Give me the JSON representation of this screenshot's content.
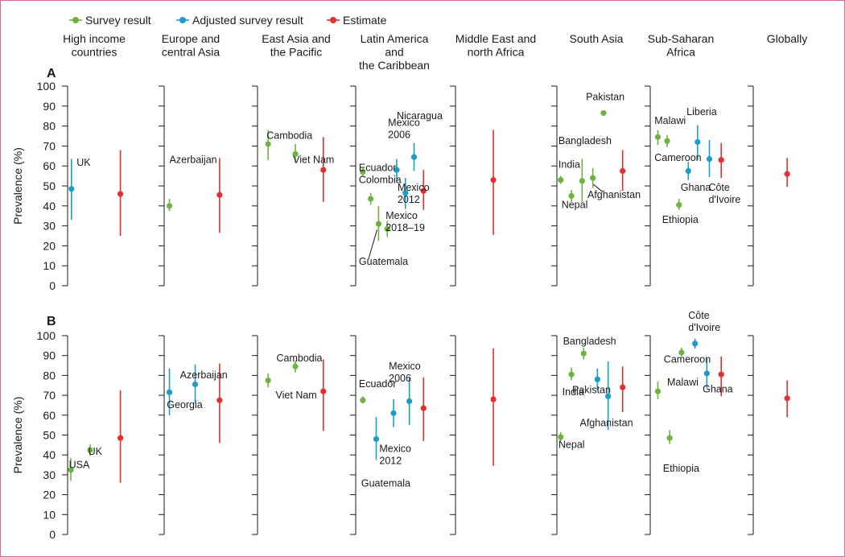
{
  "legend": [
    {
      "key": "survey",
      "label": "Survey result",
      "color": "#6db33f"
    },
    {
      "key": "adjusted",
      "label": "Adjusted survey result",
      "color": "#1c9cc9"
    },
    {
      "key": "estimate",
      "label": "Estimate",
      "color": "#e32f2f"
    }
  ],
  "frame_color": "#d9679b",
  "regions": [
    {
      "lines": [
        "High income",
        "countries"
      ]
    },
    {
      "lines": [
        "Europe and",
        "central Asia"
      ]
    },
    {
      "lines": [
        "East Asia and",
        "the Pacific"
      ]
    },
    {
      "lines": [
        "Latin America",
        "and",
        "the Caribbean"
      ]
    },
    {
      "lines": [
        "Middle East and",
        "north Africa"
      ]
    },
    {
      "lines": [
        "South Asia"
      ]
    },
    {
      "lines": [
        "Sub-Saharan",
        "Africa"
      ]
    },
    {
      "lines": [
        "Globally"
      ]
    }
  ],
  "chart_data": [
    {
      "type": "scatter",
      "panel": "A",
      "ylabel": "Prevalence (%)",
      "ylim": [
        0,
        100
      ],
      "yticks": [
        0,
        10,
        20,
        30,
        40,
        50,
        60,
        70,
        80,
        90,
        100
      ],
      "points": [
        {
          "region": 0,
          "pos": 0.06,
          "kind": "adjusted",
          "value": 48.5,
          "low": 33,
          "high": 63.5
        },
        {
          "region": 0,
          "pos": 0.82,
          "kind": "estimate",
          "value": 46,
          "low": 25,
          "high": 68
        },
        {
          "region": 1,
          "pos": 0.08,
          "kind": "survey",
          "value": 40,
          "low": 37.5,
          "high": 43.5
        },
        {
          "region": 1,
          "pos": 0.84,
          "kind": "estimate",
          "value": 45.5,
          "low": 26.5,
          "high": 64
        },
        {
          "region": 2,
          "pos": 0.14,
          "kind": "survey",
          "value": 71,
          "low": 63,
          "high": 78
        },
        {
          "region": 2,
          "pos": 0.5,
          "kind": "survey",
          "value": 66,
          "low": 61.5,
          "high": 71
        },
        {
          "region": 2,
          "pos": 0.87,
          "kind": "estimate",
          "value": 58,
          "low": 42,
          "high": 74.5
        },
        {
          "region": 3,
          "pos": 0.09,
          "kind": "survey",
          "value": 57,
          "low": 55,
          "high": 59
        },
        {
          "region": 3,
          "pos": 0.19,
          "kind": "survey",
          "value": 43.5,
          "low": 40.5,
          "high": 46.5
        },
        {
          "region": 3,
          "pos": 0.29,
          "kind": "survey",
          "value": 31,
          "low": 22.5,
          "high": 40
        },
        {
          "region": 3,
          "pos": 0.4,
          "kind": "survey",
          "value": 28.5,
          "low": 24.5,
          "high": 32.5
        },
        {
          "region": 3,
          "pos": 0.52,
          "kind": "adjusted",
          "value": 58,
          "low": 52.5,
          "high": 63.5
        },
        {
          "region": 3,
          "pos": 0.63,
          "kind": "adjusted",
          "value": 46.5,
          "low": 38.5,
          "high": 54
        },
        {
          "region": 3,
          "pos": 0.74,
          "kind": "adjusted",
          "value": 64.5,
          "low": 57.5,
          "high": 71.5
        },
        {
          "region": 3,
          "pos": 0.86,
          "kind": "estimate",
          "value": 47.5,
          "low": 38,
          "high": 58
        },
        {
          "region": 4,
          "pos": 0.48,
          "kind": "estimate",
          "value": 53,
          "low": 25.5,
          "high": 78
        },
        {
          "region": 5,
          "pos": 0.05,
          "kind": "survey",
          "value": 53,
          "low": 51,
          "high": 55
        },
        {
          "region": 5,
          "pos": 0.19,
          "kind": "survey",
          "value": 45,
          "low": 42,
          "high": 48
        },
        {
          "region": 5,
          "pos": 0.33,
          "kind": "survey",
          "value": 52.5,
          "low": 42,
          "high": 63.5
        },
        {
          "region": 5,
          "pos": 0.47,
          "kind": "survey",
          "value": 54,
          "low": 49,
          "high": 59
        },
        {
          "region": 5,
          "pos": 0.61,
          "kind": "survey",
          "value": 86.5,
          "low": 85.5,
          "high": 87.5
        },
        {
          "region": 5,
          "pos": 0.86,
          "kind": "estimate",
          "value": 57.5,
          "low": 47.5,
          "high": 68
        },
        {
          "region": 6,
          "pos": 0.09,
          "kind": "survey",
          "value": 74.5,
          "low": 70.5,
          "high": 78
        },
        {
          "region": 6,
          "pos": 0.2,
          "kind": "survey",
          "value": 72.5,
          "low": 69.5,
          "high": 75.5
        },
        {
          "region": 6,
          "pos": 0.34,
          "kind": "survey",
          "value": 40.5,
          "low": 38,
          "high": 43.5
        },
        {
          "region": 6,
          "pos": 0.45,
          "kind": "adjusted",
          "value": 57.5,
          "low": 53,
          "high": 62
        },
        {
          "region": 6,
          "pos": 0.56,
          "kind": "adjusted",
          "value": 72,
          "low": 63,
          "high": 80.5
        },
        {
          "region": 6,
          "pos": 0.7,
          "kind": "adjusted",
          "value": 63.5,
          "low": 54.5,
          "high": 73
        },
        {
          "region": 6,
          "pos": 0.84,
          "kind": "estimate",
          "value": 63,
          "low": 54,
          "high": 71.5
        },
        {
          "region": 7,
          "pos": 0.43,
          "kind": "estimate",
          "value": 56,
          "low": 49.5,
          "high": 64
        }
      ],
      "labels": [
        {
          "region": 0,
          "pos": 0.14,
          "value": 60,
          "lines": [
            "UK"
          ]
        },
        {
          "region": 1,
          "pos": 0.08,
          "value": 61.5,
          "lines": [
            "Azerbaijan"
          ]
        },
        {
          "region": 2,
          "pos": 0.12,
          "value": 73.5,
          "lines": [
            "Cambodia"
          ]
        },
        {
          "region": 2,
          "pos": 0.47,
          "value": 61.5,
          "lines": [
            "Viet Nam"
          ]
        },
        {
          "region": 3,
          "pos": 0.04,
          "value": 51.5,
          "lines": [
            "Colombia"
          ]
        },
        {
          "region": 3,
          "pos": 0.04,
          "value": 57.5,
          "lines": [
            "Ecuador"
          ]
        },
        {
          "region": 3,
          "pos": 0.41,
          "value": 80,
          "lines": [
            "Mexico",
            "2006"
          ]
        },
        {
          "region": 3,
          "pos": 0.52,
          "value": 83.5,
          "lines": [
            "Nicaragua"
          ]
        },
        {
          "region": 3,
          "pos": 0.53,
          "value": 47.5,
          "lines": [
            "Mexico",
            "2012"
          ]
        },
        {
          "region": 3,
          "pos": 0.38,
          "value": 33.5,
          "lines": [
            "Mexico",
            "2018–19"
          ]
        },
        {
          "region": 3,
          "pos": 0.04,
          "value": 10.5,
          "lines": [
            "Guatemala"
          ]
        },
        {
          "region": 5,
          "pos": 0.38,
          "value": 93,
          "lines": [
            "Pakistan"
          ]
        },
        {
          "region": 5,
          "pos": 0.02,
          "value": 71,
          "lines": [
            "Bangladesh"
          ]
        },
        {
          "region": 5,
          "pos": 0.02,
          "value": 59,
          "lines": [
            "India"
          ]
        },
        {
          "region": 5,
          "pos": 0.06,
          "value": 39,
          "lines": [
            "Nepal"
          ]
        },
        {
          "region": 5,
          "pos": 0.4,
          "value": 44,
          "lines": [
            "Afghanistan"
          ]
        },
        {
          "region": 6,
          "pos": 0.05,
          "value": 81,
          "lines": [
            "Malawi"
          ]
        },
        {
          "region": 6,
          "pos": 0.43,
          "value": 85.5,
          "lines": [
            "Liberia"
          ]
        },
        {
          "region": 6,
          "pos": 0.05,
          "value": 62.5,
          "lines": [
            "Cameroon"
          ]
        },
        {
          "region": 6,
          "pos": 0.36,
          "value": 47.5,
          "lines": [
            "Ghana"
          ]
        },
        {
          "region": 6,
          "pos": 0.69,
          "value": 47.5,
          "lines": [
            "Côte",
            "d'Ivoire"
          ]
        },
        {
          "region": 6,
          "pos": 0.14,
          "value": 31.5,
          "lines": [
            "Ethiopia"
          ]
        }
      ],
      "leaders": [
        {
          "region": 3,
          "pos1": 0.16,
          "value1": 13,
          "pos2": 0.27,
          "value2": 28
        },
        {
          "region": 5,
          "pos1": 0.47,
          "value1": 51,
          "pos2": 0.6,
          "value2": 47
        }
      ]
    },
    {
      "type": "scatter",
      "panel": "B",
      "ylabel": "Prevalence (%)",
      "ylim": [
        0,
        100
      ],
      "yticks": [
        0,
        10,
        20,
        30,
        40,
        50,
        60,
        70,
        80,
        90,
        100
      ],
      "points": [
        {
          "region": 0,
          "pos": 0.05,
          "kind": "survey",
          "value": 32.5,
          "low": 27,
          "high": 38.5
        },
        {
          "region": 0,
          "pos": 0.35,
          "kind": "survey",
          "value": 42.5,
          "low": 39.5,
          "high": 45.5
        },
        {
          "region": 0,
          "pos": 0.82,
          "kind": "estimate",
          "value": 48.5,
          "low": 26,
          "high": 72.5
        },
        {
          "region": 1,
          "pos": 0.08,
          "kind": "adjusted",
          "value": 71.5,
          "low": 60,
          "high": 83.5
        },
        {
          "region": 1,
          "pos": 0.47,
          "kind": "adjusted",
          "value": 75.5,
          "low": 66,
          "high": 85.5
        },
        {
          "region": 1,
          "pos": 0.84,
          "kind": "estimate",
          "value": 67.5,
          "low": 46,
          "high": 86
        },
        {
          "region": 2,
          "pos": 0.14,
          "kind": "survey",
          "value": 77.5,
          "low": 74,
          "high": 81
        },
        {
          "region": 2,
          "pos": 0.5,
          "kind": "survey",
          "value": 84.5,
          "low": 81.5,
          "high": 87.5
        },
        {
          "region": 2,
          "pos": 0.87,
          "kind": "estimate",
          "value": 72,
          "low": 52,
          "high": 88
        },
        {
          "region": 3,
          "pos": 0.09,
          "kind": "survey",
          "value": 67.5,
          "low": 66,
          "high": 69.5
        },
        {
          "region": 3,
          "pos": 0.26,
          "kind": "adjusted",
          "value": 48,
          "low": 37.5,
          "high": 59
        },
        {
          "region": 3,
          "pos": 0.48,
          "kind": "adjusted",
          "value": 61,
          "low": 54,
          "high": 68
        },
        {
          "region": 3,
          "pos": 0.68,
          "kind": "adjusted",
          "value": 67,
          "low": 55,
          "high": 79
        },
        {
          "region": 3,
          "pos": 0.86,
          "kind": "estimate",
          "value": 63.5,
          "low": 47,
          "high": 79
        },
        {
          "region": 4,
          "pos": 0.48,
          "kind": "estimate",
          "value": 68,
          "low": 34.5,
          "high": 93.5
        },
        {
          "region": 5,
          "pos": 0.05,
          "kind": "survey",
          "value": 49,
          "low": 47,
          "high": 51.5
        },
        {
          "region": 5,
          "pos": 0.19,
          "kind": "survey",
          "value": 80.5,
          "low": 77.5,
          "high": 84
        },
        {
          "region": 5,
          "pos": 0.35,
          "kind": "survey",
          "value": 91,
          "low": 88,
          "high": 94
        },
        {
          "region": 5,
          "pos": 0.53,
          "kind": "adjusted",
          "value": 78,
          "low": 72.5,
          "high": 83.5
        },
        {
          "region": 5,
          "pos": 0.67,
          "kind": "adjusted",
          "value": 69.5,
          "low": 52.5,
          "high": 87
        },
        {
          "region": 5,
          "pos": 0.86,
          "kind": "estimate",
          "value": 74,
          "low": 61.5,
          "high": 84.5
        },
        {
          "region": 6,
          "pos": 0.09,
          "kind": "survey",
          "value": 72,
          "low": 68,
          "high": 77
        },
        {
          "region": 6,
          "pos": 0.23,
          "kind": "survey",
          "value": 48.5,
          "low": 45.5,
          "high": 52.5
        },
        {
          "region": 6,
          "pos": 0.37,
          "kind": "survey",
          "value": 91.5,
          "low": 89.5,
          "high": 94
        },
        {
          "region": 6,
          "pos": 0.53,
          "kind": "adjusted",
          "value": 96,
          "low": 93.5,
          "high": 98.5
        },
        {
          "region": 6,
          "pos": 0.67,
          "kind": "adjusted",
          "value": 81,
          "low": 73.5,
          "high": 88.5
        },
        {
          "region": 6,
          "pos": 0.84,
          "kind": "estimate",
          "value": 80.5,
          "low": 69.5,
          "high": 89.5
        },
        {
          "region": 7,
          "pos": 0.43,
          "kind": "estimate",
          "value": 68.5,
          "low": 59,
          "high": 77.5
        }
      ],
      "labels": [
        {
          "region": 0,
          "pos": 0.02,
          "value": 33.5,
          "lines": [
            "USA"
          ]
        },
        {
          "region": 0,
          "pos": 0.32,
          "value": 40,
          "lines": [
            "UK"
          ]
        },
        {
          "region": 1,
          "pos": 0.24,
          "value": 78.5,
          "lines": [
            "Azerbaijan"
          ]
        },
        {
          "region": 1,
          "pos": 0.04,
          "value": 63.5,
          "lines": [
            "Georgia"
          ]
        },
        {
          "region": 2,
          "pos": 0.24,
          "value": 68.5,
          "lines": [
            "Viet Nam"
          ]
        },
        {
          "region": 2,
          "pos": 0.25,
          "value": 87,
          "lines": [
            "Cambodia"
          ]
        },
        {
          "region": 3,
          "pos": 0.04,
          "value": 74,
          "lines": [
            "Ecuador"
          ]
        },
        {
          "region": 3,
          "pos": 0.42,
          "value": 83,
          "lines": [
            "Mexico",
            "2006"
          ]
        },
        {
          "region": 3,
          "pos": 0.3,
          "value": 41.5,
          "lines": [
            "Mexico",
            "2012"
          ]
        },
        {
          "region": 3,
          "pos": 0.07,
          "value": 24,
          "lines": [
            "Guatemala"
          ]
        },
        {
          "region": 5,
          "pos": 0.07,
          "value": 70,
          "lines": [
            "India"
          ]
        },
        {
          "region": 5,
          "pos": 0.08,
          "value": 95.5,
          "lines": [
            "Bangladesh"
          ]
        },
        {
          "region": 5,
          "pos": 0.2,
          "value": 71,
          "lines": [
            "Pakistan"
          ]
        },
        {
          "region": 5,
          "pos": 0.02,
          "value": 43.5,
          "lines": [
            "Nepal"
          ]
        },
        {
          "region": 5,
          "pos": 0.3,
          "value": 54.5,
          "lines": [
            "Afghanistan"
          ]
        },
        {
          "region": 6,
          "pos": 0.45,
          "value": 108.5,
          "lines": [
            "Côte",
            "d'Ivoire"
          ]
        },
        {
          "region": 6,
          "pos": 0.16,
          "value": 86.5,
          "lines": [
            "Cameroon"
          ]
        },
        {
          "region": 6,
          "pos": 0.2,
          "value": 75,
          "lines": [
            "Malawi"
          ]
        },
        {
          "region": 6,
          "pos": 0.62,
          "value": 71.5,
          "lines": [
            "Ghana"
          ]
        },
        {
          "region": 6,
          "pos": 0.15,
          "value": 31.5,
          "lines": [
            "Ethiopia"
          ]
        }
      ],
      "leaders": []
    }
  ]
}
